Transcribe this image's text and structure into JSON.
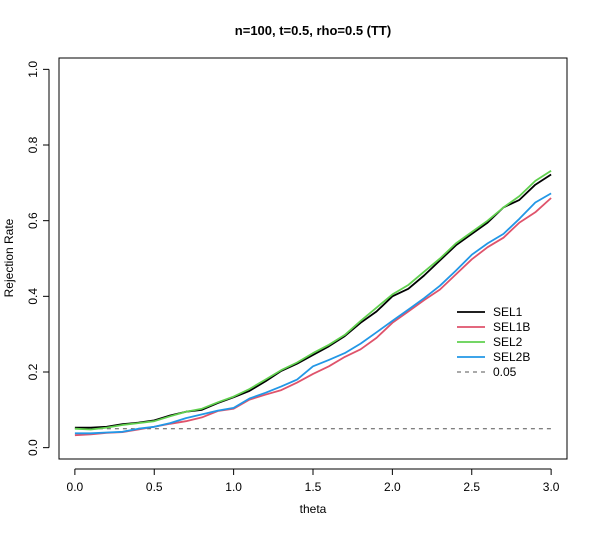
{
  "chart_data": {
    "type": "line",
    "title": "n=100, t=0.5, rho=0.5 (TT)",
    "xlabel": "theta",
    "ylabel": "Rejection Rate",
    "xlim": [
      -0.1,
      3.1
    ],
    "ylim": [
      -0.03,
      1.03
    ],
    "xticks": [
      "0.0",
      "0.5",
      "1.0",
      "1.5",
      "2.0",
      "2.5",
      "3.0"
    ],
    "yticks": [
      "0.0",
      "0.2",
      "0.4",
      "0.6",
      "0.8",
      "1.0"
    ],
    "grid": false,
    "legend_position": "right",
    "x": [
      0.0,
      0.1,
      0.2,
      0.3,
      0.4,
      0.5,
      0.6,
      0.7,
      0.8,
      0.9,
      1.0,
      1.1,
      1.2,
      1.3,
      1.4,
      1.5,
      1.6,
      1.7,
      1.8,
      1.9,
      2.0,
      2.1,
      2.2,
      2.3,
      2.4,
      2.5,
      2.6,
      2.7,
      2.8,
      2.9,
      3.0
    ],
    "series": [
      {
        "name": "SEL1",
        "color": "#000000",
        "style": "solid",
        "values": [
          0.053,
          0.053,
          0.055,
          0.062,
          0.066,
          0.072,
          0.085,
          0.095,
          0.1,
          0.118,
          0.133,
          0.15,
          0.175,
          0.203,
          0.222,
          0.245,
          0.268,
          0.295,
          0.33,
          0.36,
          0.4,
          0.42,
          0.455,
          0.495,
          0.535,
          0.565,
          0.595,
          0.635,
          0.655,
          0.695,
          0.722
        ]
      },
      {
        "name": "SEL1B",
        "color": "#df536b",
        "style": "solid",
        "values": [
          0.033,
          0.035,
          0.039,
          0.041,
          0.048,
          0.055,
          0.063,
          0.07,
          0.08,
          0.097,
          0.103,
          0.127,
          0.14,
          0.152,
          0.172,
          0.195,
          0.215,
          0.24,
          0.26,
          0.29,
          0.33,
          0.36,
          0.39,
          0.418,
          0.458,
          0.498,
          0.53,
          0.555,
          0.595,
          0.622,
          0.66
        ]
      },
      {
        "name": "SEL2",
        "color": "#61d04f",
        "style": "solid",
        "values": [
          0.05,
          0.048,
          0.053,
          0.06,
          0.065,
          0.07,
          0.083,
          0.095,
          0.103,
          0.12,
          0.135,
          0.155,
          0.18,
          0.205,
          0.225,
          0.25,
          0.272,
          0.298,
          0.335,
          0.37,
          0.405,
          0.43,
          0.465,
          0.5,
          0.54,
          0.57,
          0.6,
          0.635,
          0.665,
          0.705,
          0.732
        ]
      },
      {
        "name": "SEL2B",
        "color": "#2297e6",
        "style": "solid",
        "values": [
          0.038,
          0.038,
          0.04,
          0.042,
          0.05,
          0.055,
          0.065,
          0.078,
          0.088,
          0.098,
          0.105,
          0.13,
          0.145,
          0.162,
          0.18,
          0.215,
          0.232,
          0.25,
          0.275,
          0.305,
          0.335,
          0.365,
          0.395,
          0.428,
          0.468,
          0.51,
          0.54,
          0.565,
          0.605,
          0.648,
          0.672
        ]
      },
      {
        "name": "0.05",
        "color": "#555555",
        "style": "dashed",
        "values": [
          0.05,
          0.05,
          0.05,
          0.05,
          0.05,
          0.05,
          0.05,
          0.05,
          0.05,
          0.05,
          0.05,
          0.05,
          0.05,
          0.05,
          0.05,
          0.05,
          0.05,
          0.05,
          0.05,
          0.05,
          0.05,
          0.05,
          0.05,
          0.05,
          0.05,
          0.05,
          0.05,
          0.05,
          0.05,
          0.05,
          0.05
        ]
      }
    ]
  }
}
